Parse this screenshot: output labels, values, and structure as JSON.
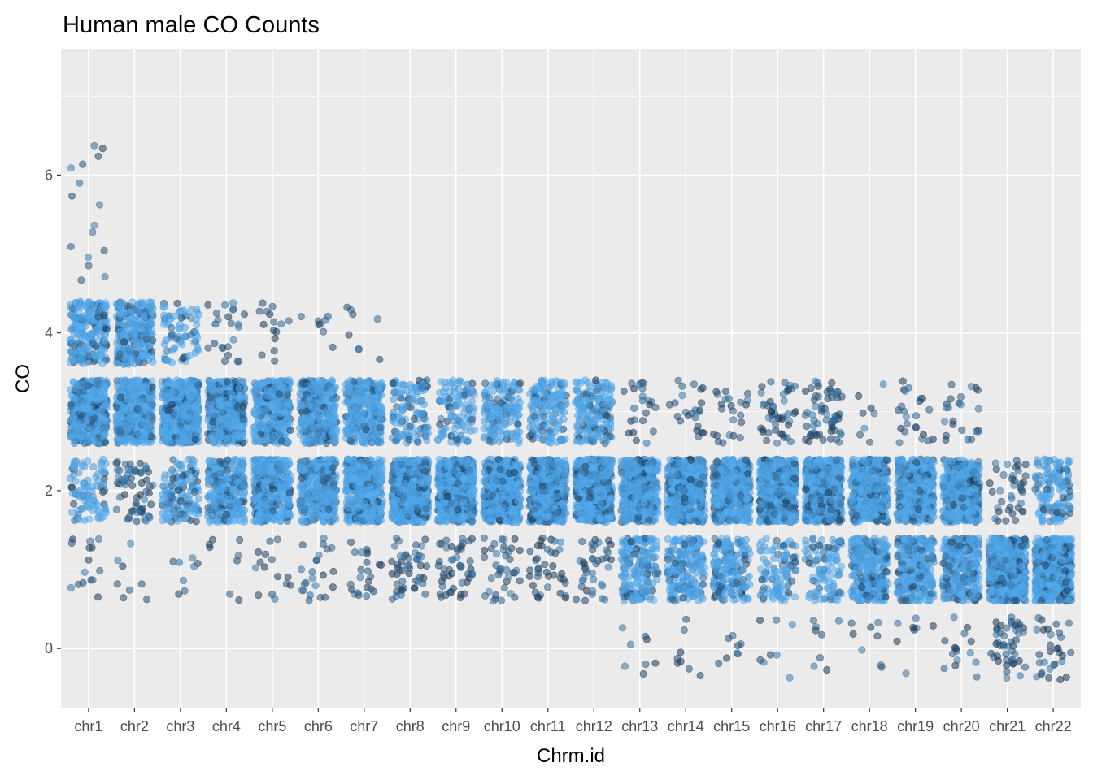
{
  "chart_data": {
    "type": "scatter",
    "title": "Human male CO Counts",
    "xlabel": "Chrm.id",
    "ylabel": "CO",
    "categories": [
      "chr1",
      "chr2",
      "chr3",
      "chr4",
      "chr5",
      "chr6",
      "chr7",
      "chr8",
      "chr9",
      "chr10",
      "chr11",
      "chr12",
      "chr13",
      "chr14",
      "chr15",
      "chr16",
      "chr17",
      "chr18",
      "chr19",
      "chr20",
      "chr21",
      "chr22"
    ],
    "y_ticks": [
      0,
      2,
      4,
      6
    ],
    "y_tick_labels": [
      "0",
      "2",
      "4",
      "6"
    ],
    "ylim": [
      -0.75,
      7.6
    ],
    "grid": true,
    "jitter": {
      "width": 0.4,
      "height": 0.4
    },
    "point_colors": {
      "light": "#56B1F7",
      "dark": "#132B43"
    },
    "count_bands": [
      {
        "category": "chr1",
        "counts": [
          0,
          0.02,
          0.12,
          0.55,
          0.3,
          0.01,
          0.01
        ]
      },
      {
        "category": "chr2",
        "counts": [
          0,
          0.01,
          0.08,
          0.55,
          0.36,
          0,
          0
        ]
      },
      {
        "category": "chr3",
        "counts": [
          0,
          0.01,
          0.18,
          0.71,
          0.1,
          0,
          0
        ]
      },
      {
        "category": "chr4",
        "counts": [
          0,
          0.01,
          0.38,
          0.58,
          0.03,
          0,
          0
        ]
      },
      {
        "category": "chr5",
        "counts": [
          0,
          0.02,
          0.48,
          0.48,
          0.02,
          0,
          0
        ]
      },
      {
        "category": "chr6",
        "counts": [
          0,
          0.03,
          0.48,
          0.48,
          0.01,
          0,
          0
        ]
      },
      {
        "category": "chr7",
        "counts": [
          0,
          0.03,
          0.55,
          0.41,
          0.01,
          0,
          0
        ]
      },
      {
        "category": "chr8",
        "counts": [
          0,
          0.06,
          0.78,
          0.16,
          0,
          0,
          0
        ]
      },
      {
        "category": "chr9",
        "counts": [
          0,
          0.06,
          0.8,
          0.14,
          0,
          0,
          0
        ]
      },
      {
        "category": "chr10",
        "counts": [
          0,
          0.05,
          0.75,
          0.2,
          0,
          0,
          0
        ]
      },
      {
        "category": "chr11",
        "counts": [
          0,
          0.05,
          0.75,
          0.2,
          0,
          0,
          0
        ]
      },
      {
        "category": "chr12",
        "counts": [
          0,
          0.05,
          0.72,
          0.23,
          0,
          0,
          0
        ]
      },
      {
        "category": "chr13",
        "counts": [
          0.01,
          0.24,
          0.72,
          0.03,
          0,
          0,
          0
        ]
      },
      {
        "category": "chr14",
        "counts": [
          0.01,
          0.26,
          0.7,
          0.03,
          0,
          0,
          0
        ]
      },
      {
        "category": "chr15",
        "counts": [
          0.01,
          0.24,
          0.72,
          0.03,
          0,
          0,
          0
        ]
      },
      {
        "category": "chr16",
        "counts": [
          0.01,
          0.13,
          0.8,
          0.06,
          0,
          0,
          0
        ]
      },
      {
        "category": "chr17",
        "counts": [
          0.01,
          0.13,
          0.78,
          0.08,
          0,
          0,
          0
        ]
      },
      {
        "category": "chr18",
        "counts": [
          0.01,
          0.38,
          0.6,
          0.01,
          0,
          0,
          0
        ]
      },
      {
        "category": "chr19",
        "counts": [
          0.01,
          0.36,
          0.6,
          0.03,
          0,
          0,
          0
        ]
      },
      {
        "category": "chr20",
        "counts": [
          0.02,
          0.4,
          0.55,
          0.03,
          0,
          0,
          0
        ]
      },
      {
        "category": "chr21",
        "counts": [
          0.06,
          0.89,
          0.05,
          0,
          0,
          0,
          0
        ]
      },
      {
        "category": "chr22",
        "counts": [
          0.04,
          0.78,
          0.18,
          0,
          0,
          0,
          0
        ]
      }
    ]
  }
}
